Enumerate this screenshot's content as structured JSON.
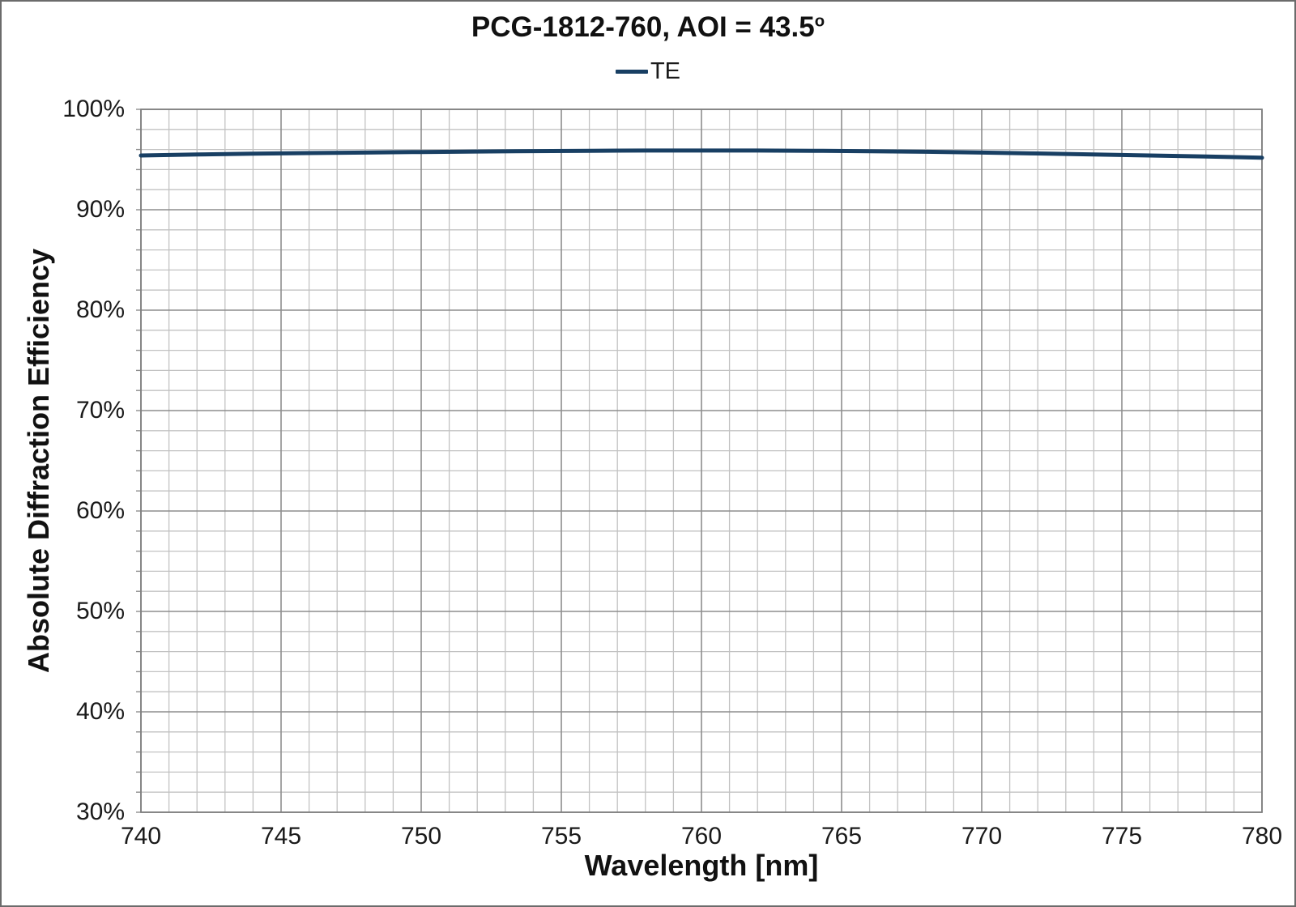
{
  "header": {
    "title_main": "PCG-1812-760, AOI = 43.5",
    "title_superscript": "o"
  },
  "legend": {
    "position": "top",
    "items": [
      {
        "label": "TE",
        "color": "#183F63"
      }
    ]
  },
  "axes": {
    "x_title": "Wavelength [nm]",
    "y_title": "Absolute Diffraction Efficiency",
    "x_ticks": [
      {
        "value": 740,
        "label": "740"
      },
      {
        "value": 745,
        "label": "745"
      },
      {
        "value": 750,
        "label": "750"
      },
      {
        "value": 755,
        "label": "755"
      },
      {
        "value": 760,
        "label": "760"
      },
      {
        "value": 765,
        "label": "765"
      },
      {
        "value": 770,
        "label": "770"
      },
      {
        "value": 775,
        "label": "775"
      },
      {
        "value": 780,
        "label": "780"
      }
    ],
    "y_ticks": [
      {
        "value": 100,
        "label": "100%"
      },
      {
        "value": 90,
        "label": "90%"
      },
      {
        "value": 80,
        "label": "80%"
      },
      {
        "value": 70,
        "label": "70%"
      },
      {
        "value": 60,
        "label": "60%"
      },
      {
        "value": 50,
        "label": "50%"
      },
      {
        "value": 40,
        "label": "40%"
      },
      {
        "value": 30,
        "label": "30%"
      }
    ]
  },
  "colors": {
    "line": "#183F63",
    "grid_minor": "#c2c2c2",
    "grid_major": "#8e8e8e",
    "frame": "#808080",
    "tick": "#8e8e8e",
    "text": "#1a1a1a"
  },
  "chart_data": {
    "type": "line",
    "title": "PCG-1812-760, AOI = 43.5°",
    "xlabel": "Wavelength [nm]",
    "ylabel": "Absolute Diffraction Efficiency",
    "xlim": [
      740,
      780
    ],
    "ylim": [
      30,
      100
    ],
    "x_minor_step": 1,
    "x_major_step": 5,
    "y_minor_step": 2,
    "y_major_step": 10,
    "grid": true,
    "legend_position": "top",
    "series": [
      {
        "name": "TE",
        "color": "#183F63",
        "x": [
          740,
          742,
          744,
          746,
          748,
          750,
          752,
          754,
          756,
          758,
          760,
          762,
          764,
          766,
          768,
          770,
          772,
          774,
          776,
          778,
          780
        ],
        "values": [
          95.4,
          95.5,
          95.58,
          95.65,
          95.7,
          95.75,
          95.8,
          95.84,
          95.87,
          95.9,
          95.9,
          95.9,
          95.87,
          95.83,
          95.78,
          95.7,
          95.6,
          95.5,
          95.4,
          95.3,
          95.18
        ]
      }
    ]
  }
}
